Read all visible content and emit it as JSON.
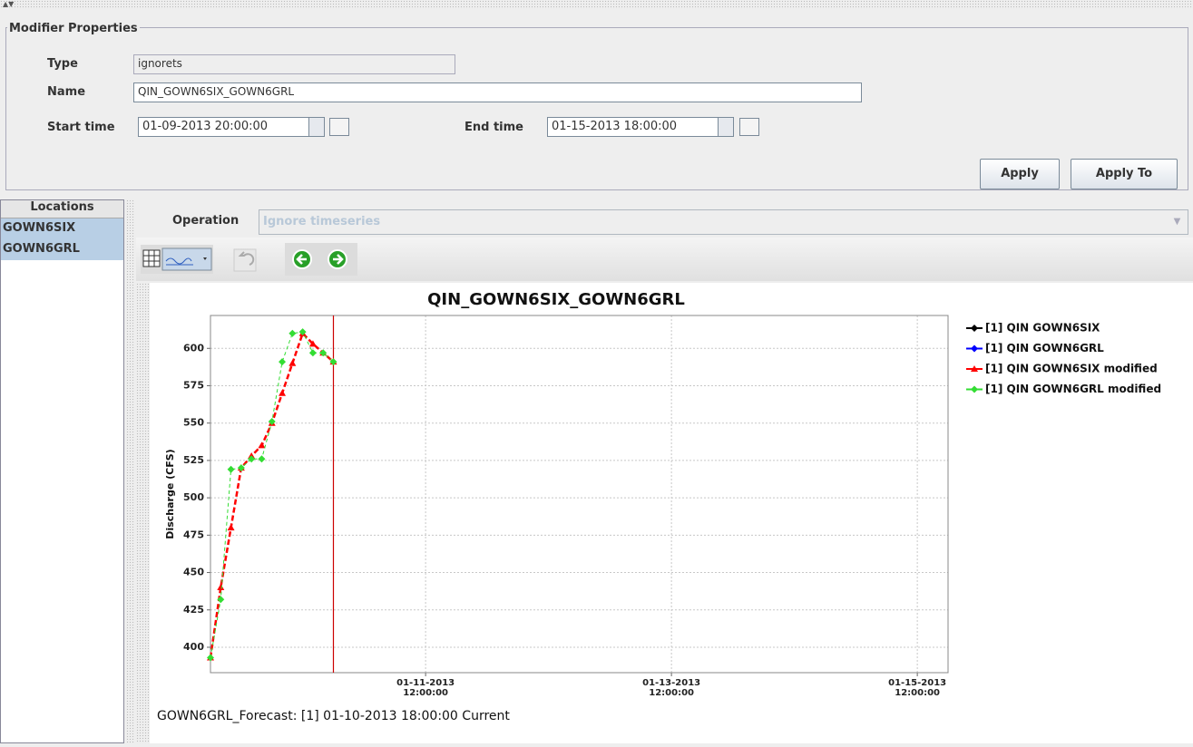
{
  "modifier_properties": {
    "title": "Modifier Properties",
    "type_label": "Type",
    "type_value": "ignorets",
    "name_label": "Name",
    "name_value": "QIN_GOWN6SIX_GOWN6GRL",
    "start_label": "Start time",
    "start_value": "01-09-2013 20:00:00",
    "end_label": "End time",
    "end_value": "01-15-2013 18:00:00",
    "apply": "Apply",
    "apply_to": "Apply To"
  },
  "locations": {
    "title": "Locations",
    "items": [
      "GOWN6SIX",
      "GOWN6GRL"
    ]
  },
  "operation": {
    "label": "Operation",
    "value": "Ignore timeseries"
  },
  "chart_data": {
    "type": "line",
    "title": "QIN_GOWN6SIX_GOWN6GRL",
    "y_label": "Discharge (CFS)",
    "x": [
      "01-09-2013 18:00:00",
      "01-09-2013 20:00:00",
      "01-09-2013 22:00:00",
      "01-10-2013 00:00:00",
      "01-10-2013 02:00:00",
      "01-10-2013 04:00:00",
      "01-10-2013 06:00:00",
      "01-10-2013 08:00:00",
      "01-10-2013 10:00:00",
      "01-10-2013 12:00:00",
      "01-10-2013 14:00:00",
      "01-10-2013 16:00:00",
      "01-10-2013 18:00:00"
    ],
    "series": [
      {
        "name": "[1] QIN GOWN6SIX",
        "color": "#000000",
        "values": [
          null,
          null,
          null,
          null,
          null,
          null,
          null,
          null,
          null,
          null,
          null,
          null,
          null
        ]
      },
      {
        "name": "[1] QIN GOWN6GRL",
        "color": "#0000ff",
        "values": [
          null,
          null,
          null,
          null,
          null,
          null,
          null,
          null,
          null,
          null,
          null,
          null,
          null
        ]
      },
      {
        "name": "[1] QIN GOWN6SIX modified",
        "color": "#ff0000",
        "values": [
          393,
          440,
          480,
          520,
          528,
          535,
          550,
          570,
          590,
          610,
          603,
          597,
          591
        ]
      },
      {
        "name": "[1] QIN GOWN6GRL modified",
        "color": "#33dd33",
        "values": [
          393,
          432,
          519,
          520,
          526,
          526,
          551,
          591,
          610,
          611,
          597,
          597,
          591
        ]
      }
    ],
    "xlim": [
      "01-09-2013 18:00:00",
      "01-15-2013 18:00:00"
    ],
    "xticks": [
      "01-11-2013 12:00:00",
      "01-13-2013 12:00:00",
      "01-15-2013 12:00:00"
    ],
    "ylim": [
      383,
      622
    ],
    "yticks": [
      400,
      425,
      450,
      475,
      500,
      525,
      550,
      575,
      600
    ],
    "grid": true,
    "legend": "right",
    "current_time": "01-10-2013 18:00:00",
    "current_time_color": "#cc0000"
  },
  "status": "GOWN6GRL_Forecast: [1] 01-10-2013 18:00:00 Current"
}
